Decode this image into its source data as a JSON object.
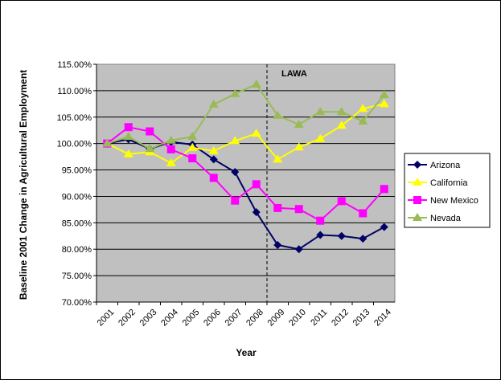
{
  "chart_data": {
    "type": "line",
    "title": "",
    "xlabel": "Year",
    "ylabel": "Baseline 2001 Change in Agricultural Employment",
    "categories": [
      "2001",
      "2002",
      "2003",
      "2004",
      "2005",
      "2006",
      "2007",
      "2008",
      "2009",
      "2010",
      "2011",
      "2012",
      "2013",
      "2014"
    ],
    "ylim": [
      70,
      115
    ],
    "yticks": [
      "70.00%",
      "75.00%",
      "80.00%",
      "85.00%",
      "90.00%",
      "95.00%",
      "100.00%",
      "105.00%",
      "110.00%",
      "115.00%"
    ],
    "grid": true,
    "legend_position": "right",
    "annotation": {
      "label": "LAWA",
      "after_category": "2008"
    },
    "series": [
      {
        "name": "Arizona",
        "color": "#000066",
        "marker": "diamond",
        "values": [
          100,
          100.8,
          99.0,
          100.3,
          99.8,
          97.0,
          94.6,
          87.0,
          80.8,
          80.0,
          82.7,
          82.5,
          82.0,
          84.2
        ]
      },
      {
        "name": "California",
        "color": "#FFFF00",
        "marker": "triangle",
        "values": [
          100,
          98.0,
          98.4,
          96.3,
          99.2,
          98.6,
          100.5,
          101.9,
          97.0,
          99.3,
          100.9,
          103.4,
          106.6,
          107.5
        ]
      },
      {
        "name": "New Mexico",
        "color": "#FF00FF",
        "marker": "square",
        "values": [
          100,
          103.1,
          102.3,
          98.9,
          97.2,
          93.5,
          89.2,
          92.3,
          87.8,
          87.6,
          85.4,
          89.1,
          86.8,
          91.4
        ]
      },
      {
        "name": "Nevada",
        "color": "#99BB55",
        "marker": "triangle",
        "values": [
          100,
          101.3,
          99.0,
          100.6,
          101.3,
          107.4,
          109.4,
          111.2,
          105.3,
          103.6,
          106.0,
          106.0,
          104.2,
          109.2
        ]
      }
    ]
  }
}
